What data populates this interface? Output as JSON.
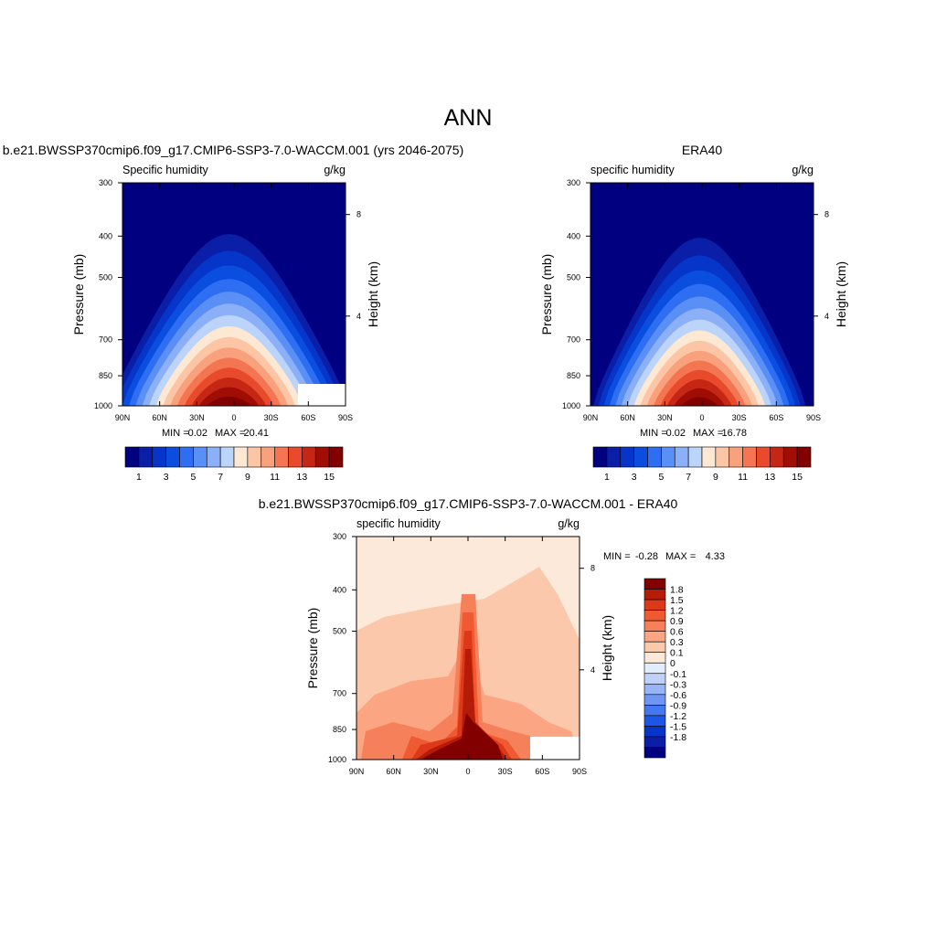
{
  "figure": {
    "title": "ANN"
  },
  "colors": {
    "blue_red_scale": [
      "#000080",
      "#0a1ea8",
      "#0535c9",
      "#0a4ee0",
      "#2e6ef2",
      "#5a8ff5",
      "#8bb0f7",
      "#bdd4fa",
      "#fde8d4",
      "#fcc6a6",
      "#f9a07c",
      "#f47552",
      "#e84a2c",
      "#c62614",
      "#a00d05",
      "#820000"
    ],
    "diff_scale": [
      "#000080",
      "#0a1ea8",
      "#0535c9",
      "#1d55e6",
      "#4477f0",
      "#6f96f5",
      "#98b4f7",
      "#bfd0fa",
      "#e1ecfd",
      "#fde9da",
      "#fcc8ac",
      "#fba583",
      "#f6805a",
      "#ef5a32",
      "#dd3818",
      "#b51c08",
      "#820000"
    ]
  },
  "panels": {
    "model": {
      "header": "b.e21.BWSSP370cmip6.f09_g17.CMIP6-SSP3-7.0-WACCM.001 (yrs 2046-2075)",
      "left_label": "Specific humidity",
      "right_label": "g/kg",
      "ylabel": "Pressure (mb)",
      "ylabel_right": "Height (km)",
      "min_label": "MIN =",
      "min_value": "0.02",
      "max_label": "MAX =",
      "max_value": "20.41"
    },
    "obs": {
      "header": "ERA40",
      "left_label": "specific humidity",
      "right_label": "g/kg",
      "ylabel": "Pressure (mb)",
      "ylabel_right": "Height (km)",
      "min_label": "MIN =",
      "min_value": "0.02",
      "max_label": "MAX =",
      "max_value": "16.78"
    },
    "diff": {
      "header": "b.e21.BWSSP370cmip6.f09_g17.CMIP6-SSP3-7.0-WACCM.001 - ERA40",
      "left_label": "specific humidity",
      "right_label": "g/kg",
      "ylabel": "Pressure (mb)",
      "ylabel_right": "Height (km)",
      "min_label": "MIN =",
      "min_value": "-0.28",
      "max_label": "MAX =",
      "max_value": "4.33"
    }
  },
  "chart_data": [
    {
      "type": "heatmap",
      "title": "b.e21.BWSSP370cmip6.f09_g17.CMIP6-SSP3-7.0-WACCM.001 (yrs 2046-2075)",
      "xlabel": "",
      "ylabel": "Pressure (mb)",
      "ylabel_right": "Height (km)",
      "x_ticks": [
        "90N",
        "60N",
        "30N",
        "0",
        "30S",
        "60S",
        "90S"
      ],
      "y_ticks": [
        "300",
        "400",
        "500",
        "700",
        "850",
        "1000"
      ],
      "y_ticks_right": [
        "8",
        "4"
      ],
      "y_scale": "log",
      "ylim": [
        1000,
        300
      ],
      "colorbar_labels": [
        "1",
        "3",
        "5",
        "7",
        "9",
        "11",
        "13",
        "15"
      ],
      "min": 0.02,
      "max": 20.41,
      "peak_percent_lat": 51,
      "peak_halfwidth_deg": 36,
      "peak_min_pressure_top": 0.18
    },
    {
      "type": "heatmap",
      "title": "ERA40",
      "xlabel": "",
      "ylabel": "Pressure (mb)",
      "ylabel_right": "Height (km)",
      "x_ticks": [
        "90N",
        "60N",
        "30N",
        "0",
        "30S",
        "60S",
        "90S"
      ],
      "y_ticks": [
        "300",
        "400",
        "500",
        "700",
        "850",
        "1000"
      ],
      "y_ticks_right": [
        "8",
        "4"
      ],
      "y_scale": "log",
      "ylim": [
        1000,
        300
      ],
      "colorbar_labels": [
        "1",
        "3",
        "5",
        "7",
        "9",
        "11",
        "13",
        "15"
      ],
      "min": 0.02,
      "max": 16.78
    },
    {
      "type": "heatmap",
      "title": "b.e21.BWSSP370cmip6.f09_g17.CMIP6-SSP3-7.0-WACCM.001 - ERA40",
      "xlabel": "",
      "ylabel": "Pressure (mb)",
      "ylabel_right": "Height (km)",
      "x_ticks": [
        "90N",
        "60N",
        "30N",
        "0",
        "30S",
        "60S",
        "90S"
      ],
      "y_ticks": [
        "300",
        "400",
        "500",
        "700",
        "850",
        "1000"
      ],
      "y_ticks_right": [
        "8",
        "4"
      ],
      "y_scale": "log",
      "ylim": [
        1000,
        300
      ],
      "colorbar_labels": [
        "1.8",
        "1.5",
        "1.2",
        "0.9",
        "0.6",
        "0.3",
        "0.1",
        "0",
        "-0.1",
        "-0.3",
        "-0.6",
        "-0.9",
        "-1.2",
        "-1.5",
        "-1.8"
      ],
      "min": -0.28,
      "max": 4.33
    }
  ]
}
